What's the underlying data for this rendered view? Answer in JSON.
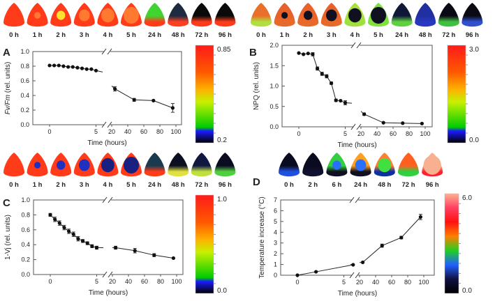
{
  "chart_data": [
    {
      "id": "A",
      "type": "line",
      "panel_label": "A",
      "ylabel_italic": "Fv/Fm",
      "ylabel_rest": " (rel. units)",
      "xlabel": "Time (hours)",
      "ylim": [
        0,
        1.0
      ],
      "yticks": [
        "0.0",
        "0.2",
        "0.4",
        "0.6",
        "0.8",
        "1.0"
      ],
      "xticks": [
        "0",
        "5",
        "20",
        "40",
        "60",
        "80",
        "100"
      ],
      "xtick_values": [
        0,
        5,
        20,
        40,
        60,
        80,
        100
      ],
      "x_axis_break": true,
      "series": [
        {
          "x": [
            0,
            0.5,
            1,
            1.5,
            2,
            2.5,
            3,
            3.5,
            4,
            4.5,
            5
          ],
          "y": [
            0.81,
            0.81,
            0.81,
            0.8,
            0.79,
            0.79,
            0.78,
            0.77,
            0.76,
            0.76,
            0.74
          ],
          "err": [
            0.01,
            0.01,
            0.01,
            0.01,
            0.01,
            0.01,
            0.01,
            0.01,
            0.01,
            0.01,
            0.01
          ]
        },
        {
          "x": [
            24,
            48,
            72,
            96
          ],
          "y": [
            0.49,
            0.34,
            0.33,
            0.23
          ],
          "err": [
            0.03,
            0.02,
            0.01,
            0.06
          ]
        }
      ],
      "trend_end_left": 0.72,
      "trend_start_right": 0.53,
      "colorbar": {
        "max": "0.85",
        "min": "0.2",
        "stops": [
          "#000000",
          "#1a1aff",
          "#00cc00",
          "#c8f000",
          "#ffb000",
          "#ff5a00",
          "#ff1a1a"
        ]
      },
      "images": {
        "labels": [
          "0 h",
          "1 h",
          "2 h",
          "3 h",
          "4 h",
          "5 h",
          "24 h",
          "48 h",
          "72 h",
          "96 h"
        ],
        "top": [
          "#ff3b1a",
          "#ff3b1a",
          "#ff3b1a",
          "#ff3b1a",
          "#ff3b1a",
          "#ff3b1a",
          "#3fd430",
          "#1d2a40",
          "#0a0a0a",
          "#0a0a0a"
        ],
        "bottom": [
          "#ff3b1a",
          "#ff3b1a",
          "#ff3b1a",
          "#ff3b1a",
          "#ff3b1a",
          "#ff3b1a",
          "#ff3b1a",
          "#ff4020",
          "#ff3b1a",
          "#ff3b1a"
        ],
        "spot": [
          "",
          "#ff7a30",
          "#ffe030",
          "#ff7a30",
          "#ff7a30",
          "#ff7a30",
          "",
          "",
          "",
          ""
        ]
      }
    },
    {
      "id": "B",
      "type": "line",
      "panel_label": "B",
      "ylabel_italic": "",
      "ylabel_rest": "NPQ (rel. units)",
      "xlabel": "Time (hours)",
      "ylim": [
        0,
        2.0
      ],
      "yticks": [
        "0.0",
        "0.5",
        "1.0",
        "1.5",
        "2.0"
      ],
      "xticks": [
        "0",
        "5",
        "20",
        "40",
        "60",
        "80",
        "100"
      ],
      "xtick_values": [
        0,
        5,
        20,
        40,
        60,
        80,
        100
      ],
      "x_axis_break": true,
      "series": [
        {
          "x": [
            0,
            0.5,
            1,
            1.5,
            2,
            2.5,
            3,
            3.5,
            4,
            4.5,
            5
          ],
          "y": [
            1.81,
            1.78,
            1.8,
            1.78,
            1.43,
            1.3,
            1.24,
            1.07,
            0.65,
            0.64,
            0.59
          ],
          "err": [
            0.02,
            0.02,
            0.02,
            0.04,
            0.04,
            0.04,
            0.04,
            0.03,
            0.03,
            0.02,
            0.05
          ]
        },
        {
          "x": [
            24,
            48,
            72,
            96
          ],
          "y": [
            0.31,
            0.1,
            0.09,
            0.08
          ],
          "err": [
            0.03,
            0.02,
            0.02,
            0.02
          ]
        }
      ],
      "trend_end_left": 0.58,
      "trend_start_right": 0.38,
      "colorbar": {
        "max": "3.0",
        "min": "0.0",
        "stops": [
          "#000000",
          "#1a1aff",
          "#00cc00",
          "#c8f000",
          "#ffb000",
          "#ff5a00",
          "#ff1a1a"
        ]
      },
      "images": {
        "labels": [
          "0 h",
          "1 h",
          "2 h",
          "3 h",
          "4 h",
          "5 h",
          "24 h",
          "48 h",
          "72 h",
          "96 h"
        ],
        "top": [
          "#e8702a",
          "#e8602a",
          "#e8602a",
          "#e8602a",
          "#a8e040",
          "#80e040",
          "#101838",
          "#2030a0",
          "#0a0a14",
          "#0a0a14"
        ],
        "bottom": [
          "#b0e040",
          "#e86a2a",
          "#e86a2a",
          "#e86a2a",
          "#9fe040",
          "#80e040",
          "#60d040",
          "#2838c0",
          "#40c040",
          "#3050d0"
        ],
        "spot": [
          "",
          "#101020",
          "#101020",
          "#101020",
          "#101020",
          "#101020",
          "",
          "",
          "",
          ""
        ]
      }
    },
    {
      "id": "C",
      "type": "line",
      "panel_label": "C",
      "ylabel_italic": "",
      "ylabel_rest": "1-Vj (rel. units)",
      "xlabel": "Time (hours)",
      "ylim": [
        0,
        1.0
      ],
      "yticks": [
        "0.0",
        "0.2",
        "0.4",
        "0.6",
        "0.8",
        "1.0"
      ],
      "xticks": [
        "0",
        "5",
        "20",
        "40",
        "60",
        "80",
        "100"
      ],
      "xtick_values": [
        0,
        5,
        20,
        40,
        60,
        80,
        100
      ],
      "x_axis_break": true,
      "series": [
        {
          "x": [
            0,
            0.5,
            1,
            1.5,
            2,
            2.5,
            3,
            3.5,
            4,
            4.5,
            5
          ],
          "y": [
            0.8,
            0.74,
            0.69,
            0.63,
            0.58,
            0.54,
            0.48,
            0.45,
            0.42,
            0.38,
            0.36
          ],
          "err": [
            0.02,
            0.03,
            0.03,
            0.03,
            0.03,
            0.03,
            0.03,
            0.02,
            0.02,
            0.02,
            0.02
          ]
        },
        {
          "x": [
            24,
            48,
            72,
            96
          ],
          "y": [
            0.36,
            0.32,
            0.26,
            0.22
          ],
          "err": [
            0.02,
            0.03,
            0.02,
            0.01
          ]
        }
      ],
      "trend_end_left": 0.36,
      "trend_start_right": 0.36,
      "colorbar": {
        "max": "1.0",
        "min": "0.0",
        "stops": [
          "#000000",
          "#1a1aff",
          "#00cc00",
          "#c8f000",
          "#ffb000",
          "#ff5a00",
          "#ff1a1a"
        ]
      },
      "images": {
        "labels": [
          "0 h",
          "1 h",
          "2 h",
          "3 h",
          "4 h",
          "5 h",
          "24 h",
          "48 h",
          "72 h",
          "96 h"
        ],
        "top": [
          "#ff3b1a",
          "#ff3b1a",
          "#ff3b1a",
          "#ff3b1a",
          "#ff3b1a",
          "#ff3b1a",
          "#1a3a50",
          "#0a1020",
          "#101840",
          "#0a0a20"
        ],
        "bottom": [
          "#ff3b1a",
          "#ff3b1a",
          "#ff3b1a",
          "#ff3b1a",
          "#ff3b1a",
          "#ff3b1a",
          "#ff3b1a",
          "#e0e040",
          "#c0e040",
          "#50d040"
        ],
        "spot": [
          "",
          "#2030c0",
          "#2030c0",
          "#2030c0",
          "#1a2080",
          "#1a2080",
          "",
          "",
          "",
          ""
        ]
      }
    },
    {
      "id": "D",
      "type": "line",
      "panel_label": "D",
      "ylabel_italic": "",
      "ylabel_rest": "Temperature increase (°C)",
      "xlabel": "Time (hours)",
      "ylim": [
        0,
        7
      ],
      "yticks": [
        "0",
        "1",
        "2",
        "3",
        "4",
        "5",
        "6",
        "7"
      ],
      "xticks": [
        "0",
        "5",
        "20",
        "40",
        "60",
        "80",
        "100"
      ],
      "xtick_values": [
        0,
        5,
        20,
        40,
        60,
        80,
        100
      ],
      "x_axis_break": true,
      "series": [
        {
          "x": [
            0,
            2,
            6
          ],
          "y": [
            0,
            0.32,
            0.97
          ],
          "err": [
            0.03,
            0.05,
            0.05
          ]
        },
        {
          "x": [
            24,
            48,
            72,
            96
          ],
          "y": [
            1.2,
            2.75,
            3.5,
            5.42
          ],
          "err": [
            0.07,
            0.15,
            0.12,
            0.25
          ]
        }
      ],
      "trend_end_left": 1.0,
      "trend_start_right": 1.18,
      "colorbar": {
        "max": "6.0",
        "min": "0.0",
        "stops": [
          "#000000",
          "#101040",
          "#2060ff",
          "#20d020",
          "#ff8000",
          "#ff1010",
          "#ff4060",
          "#ffb090"
        ]
      },
      "images": {
        "labels": [
          "0 h",
          "2 h",
          "6 h",
          "24 h",
          "48 h",
          "72 h",
          "96 h"
        ],
        "top": [
          "#0a0a20",
          "#0a0a20",
          "#30d040",
          "#ffa020",
          "#ff8030",
          "#ff6020",
          "#f8b090"
        ],
        "bottom": [
          "#2050e0",
          "#101030",
          "#101020",
          "#101020",
          "#1030a0",
          "#30d040",
          "#ff2030"
        ],
        "spot": [
          "",
          "",
          "#2a70ff",
          "#2a70ff",
          "#40e040",
          "",
          "#f8b090"
        ]
      }
    }
  ]
}
